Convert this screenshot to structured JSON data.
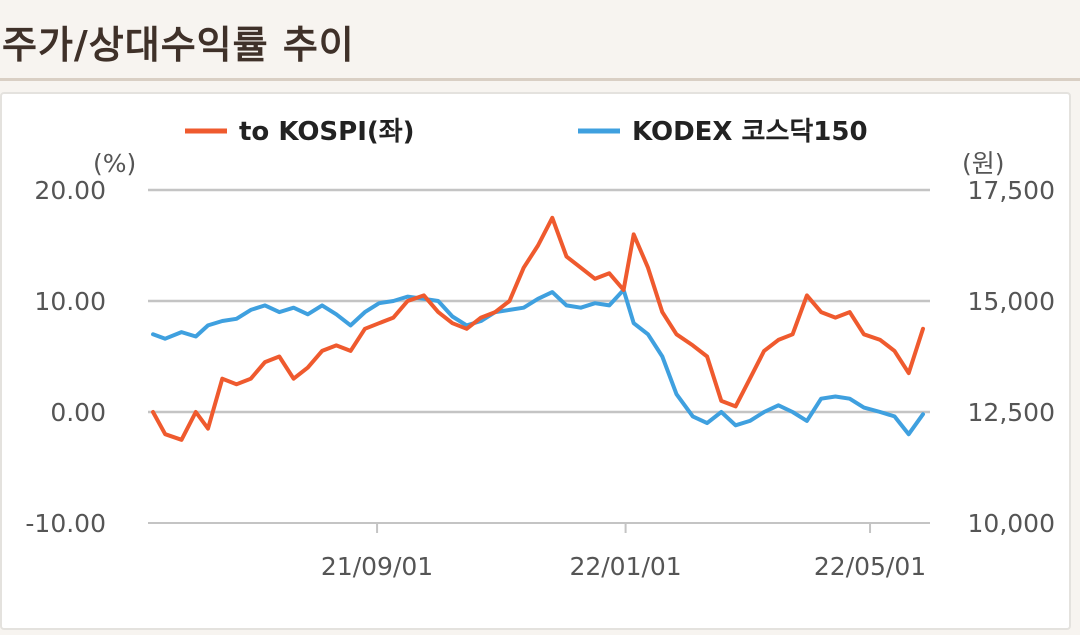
{
  "header": {
    "title": "주가/상대수익률 추이"
  },
  "chart_data": {
    "type": "line",
    "legend_position": "top",
    "grid": true,
    "left_unit": "(%)",
    "right_unit": "(원)",
    "ylim_left": [
      -10,
      20
    ],
    "ylim_right": [
      10000,
      17500
    ],
    "yticks_left": [
      "20.00",
      "10.00",
      "0.00",
      "-10.00"
    ],
    "yticks_right": [
      "17,500",
      "15,000",
      "12,500",
      "10,000"
    ],
    "xticks": [
      "21/09/01",
      "22/01/01",
      "22/05/01"
    ],
    "series": [
      {
        "name": "to KOSPI(좌)",
        "axis": "left",
        "color": "#ef5a2e",
        "x": [
          "21/05/14",
          "21/05/20",
          "21/05/28",
          "21/06/04",
          "21/06/10",
          "21/06/17",
          "21/06/24",
          "21/07/01",
          "21/07/08",
          "21/07/15",
          "21/07/22",
          "21/07/29",
          "21/08/05",
          "21/08/12",
          "21/08/19",
          "21/08/26",
          "21/09/02",
          "21/09/09",
          "21/09/16",
          "21/09/24",
          "21/10/01",
          "21/10/08",
          "21/10/15",
          "21/10/22",
          "21/10/29",
          "21/11/05",
          "21/11/12",
          "21/11/19",
          "21/11/26",
          "21/12/03",
          "21/12/10",
          "21/12/17",
          "21/12/24",
          "21/12/31",
          "22/01/05",
          "22/01/12",
          "22/01/19",
          "22/01/26",
          "22/02/03",
          "22/02/10",
          "22/02/17",
          "22/02/24",
          "22/03/03",
          "22/03/10",
          "22/03/17",
          "22/03/24",
          "22/03/31",
          "22/04/07",
          "22/04/14",
          "22/04/21",
          "22/04/28",
          "22/05/06",
          "22/05/13",
          "22/05/20",
          "22/05/27"
        ],
        "values": [
          0.0,
          -2.0,
          -2.5,
          0.0,
          -1.5,
          3.0,
          2.5,
          3.0,
          4.5,
          5.0,
          3.0,
          4.0,
          5.5,
          6.0,
          5.5,
          7.5,
          8.0,
          8.5,
          10.0,
          10.5,
          9.0,
          8.0,
          7.5,
          8.5,
          9.0,
          10.0,
          13.0,
          15.0,
          17.5,
          14.0,
          13.0,
          12.0,
          12.5,
          11.0,
          16.0,
          13.0,
          9.0,
          7.0,
          6.0,
          5.0,
          1.0,
          0.5,
          3.0,
          5.5,
          6.5,
          7.0,
          10.5,
          9.0,
          8.5,
          9.0,
          7.0,
          6.5,
          5.5,
          3.5,
          7.5
        ]
      },
      {
        "name": "KODEX 코스닥150",
        "axis": "right",
        "color": "#3fa0df",
        "x": [
          "21/05/14",
          "21/05/20",
          "21/05/28",
          "21/06/04",
          "21/06/10",
          "21/06/17",
          "21/06/24",
          "21/07/01",
          "21/07/08",
          "21/07/15",
          "21/07/22",
          "21/07/29",
          "21/08/05",
          "21/08/12",
          "21/08/19",
          "21/08/26",
          "21/09/02",
          "21/09/09",
          "21/09/16",
          "21/09/24",
          "21/10/01",
          "21/10/08",
          "21/10/15",
          "21/10/22",
          "21/10/29",
          "21/11/05",
          "21/11/12",
          "21/11/19",
          "21/11/26",
          "21/12/03",
          "21/12/10",
          "21/12/17",
          "21/12/24",
          "21/12/31",
          "22/01/05",
          "22/01/12",
          "22/01/19",
          "22/01/26",
          "22/02/03",
          "22/02/10",
          "22/02/17",
          "22/02/24",
          "22/03/03",
          "22/03/10",
          "22/03/17",
          "22/03/24",
          "22/03/31",
          "22/04/07",
          "22/04/14",
          "22/04/21",
          "22/04/28",
          "22/05/06",
          "22/05/13",
          "22/05/20",
          "22/05/27"
        ],
        "values": [
          14250,
          14150,
          14300,
          14200,
          14450,
          14550,
          14600,
          14800,
          14900,
          14750,
          14850,
          14700,
          14900,
          14700,
          14450,
          14750,
          14950,
          15000,
          15100,
          15050,
          15000,
          14650,
          14450,
          14550,
          14750,
          14800,
          14850,
          15050,
          15200,
          14900,
          14850,
          14950,
          14900,
          15250,
          14500,
          14250,
          13750,
          12900,
          12400,
          12250,
          12500,
          12200,
          12300,
          12500,
          12650,
          12500,
          12300,
          12800,
          12850,
          12800,
          12600,
          12500,
          12400,
          12000,
          12450
        ]
      }
    ]
  }
}
